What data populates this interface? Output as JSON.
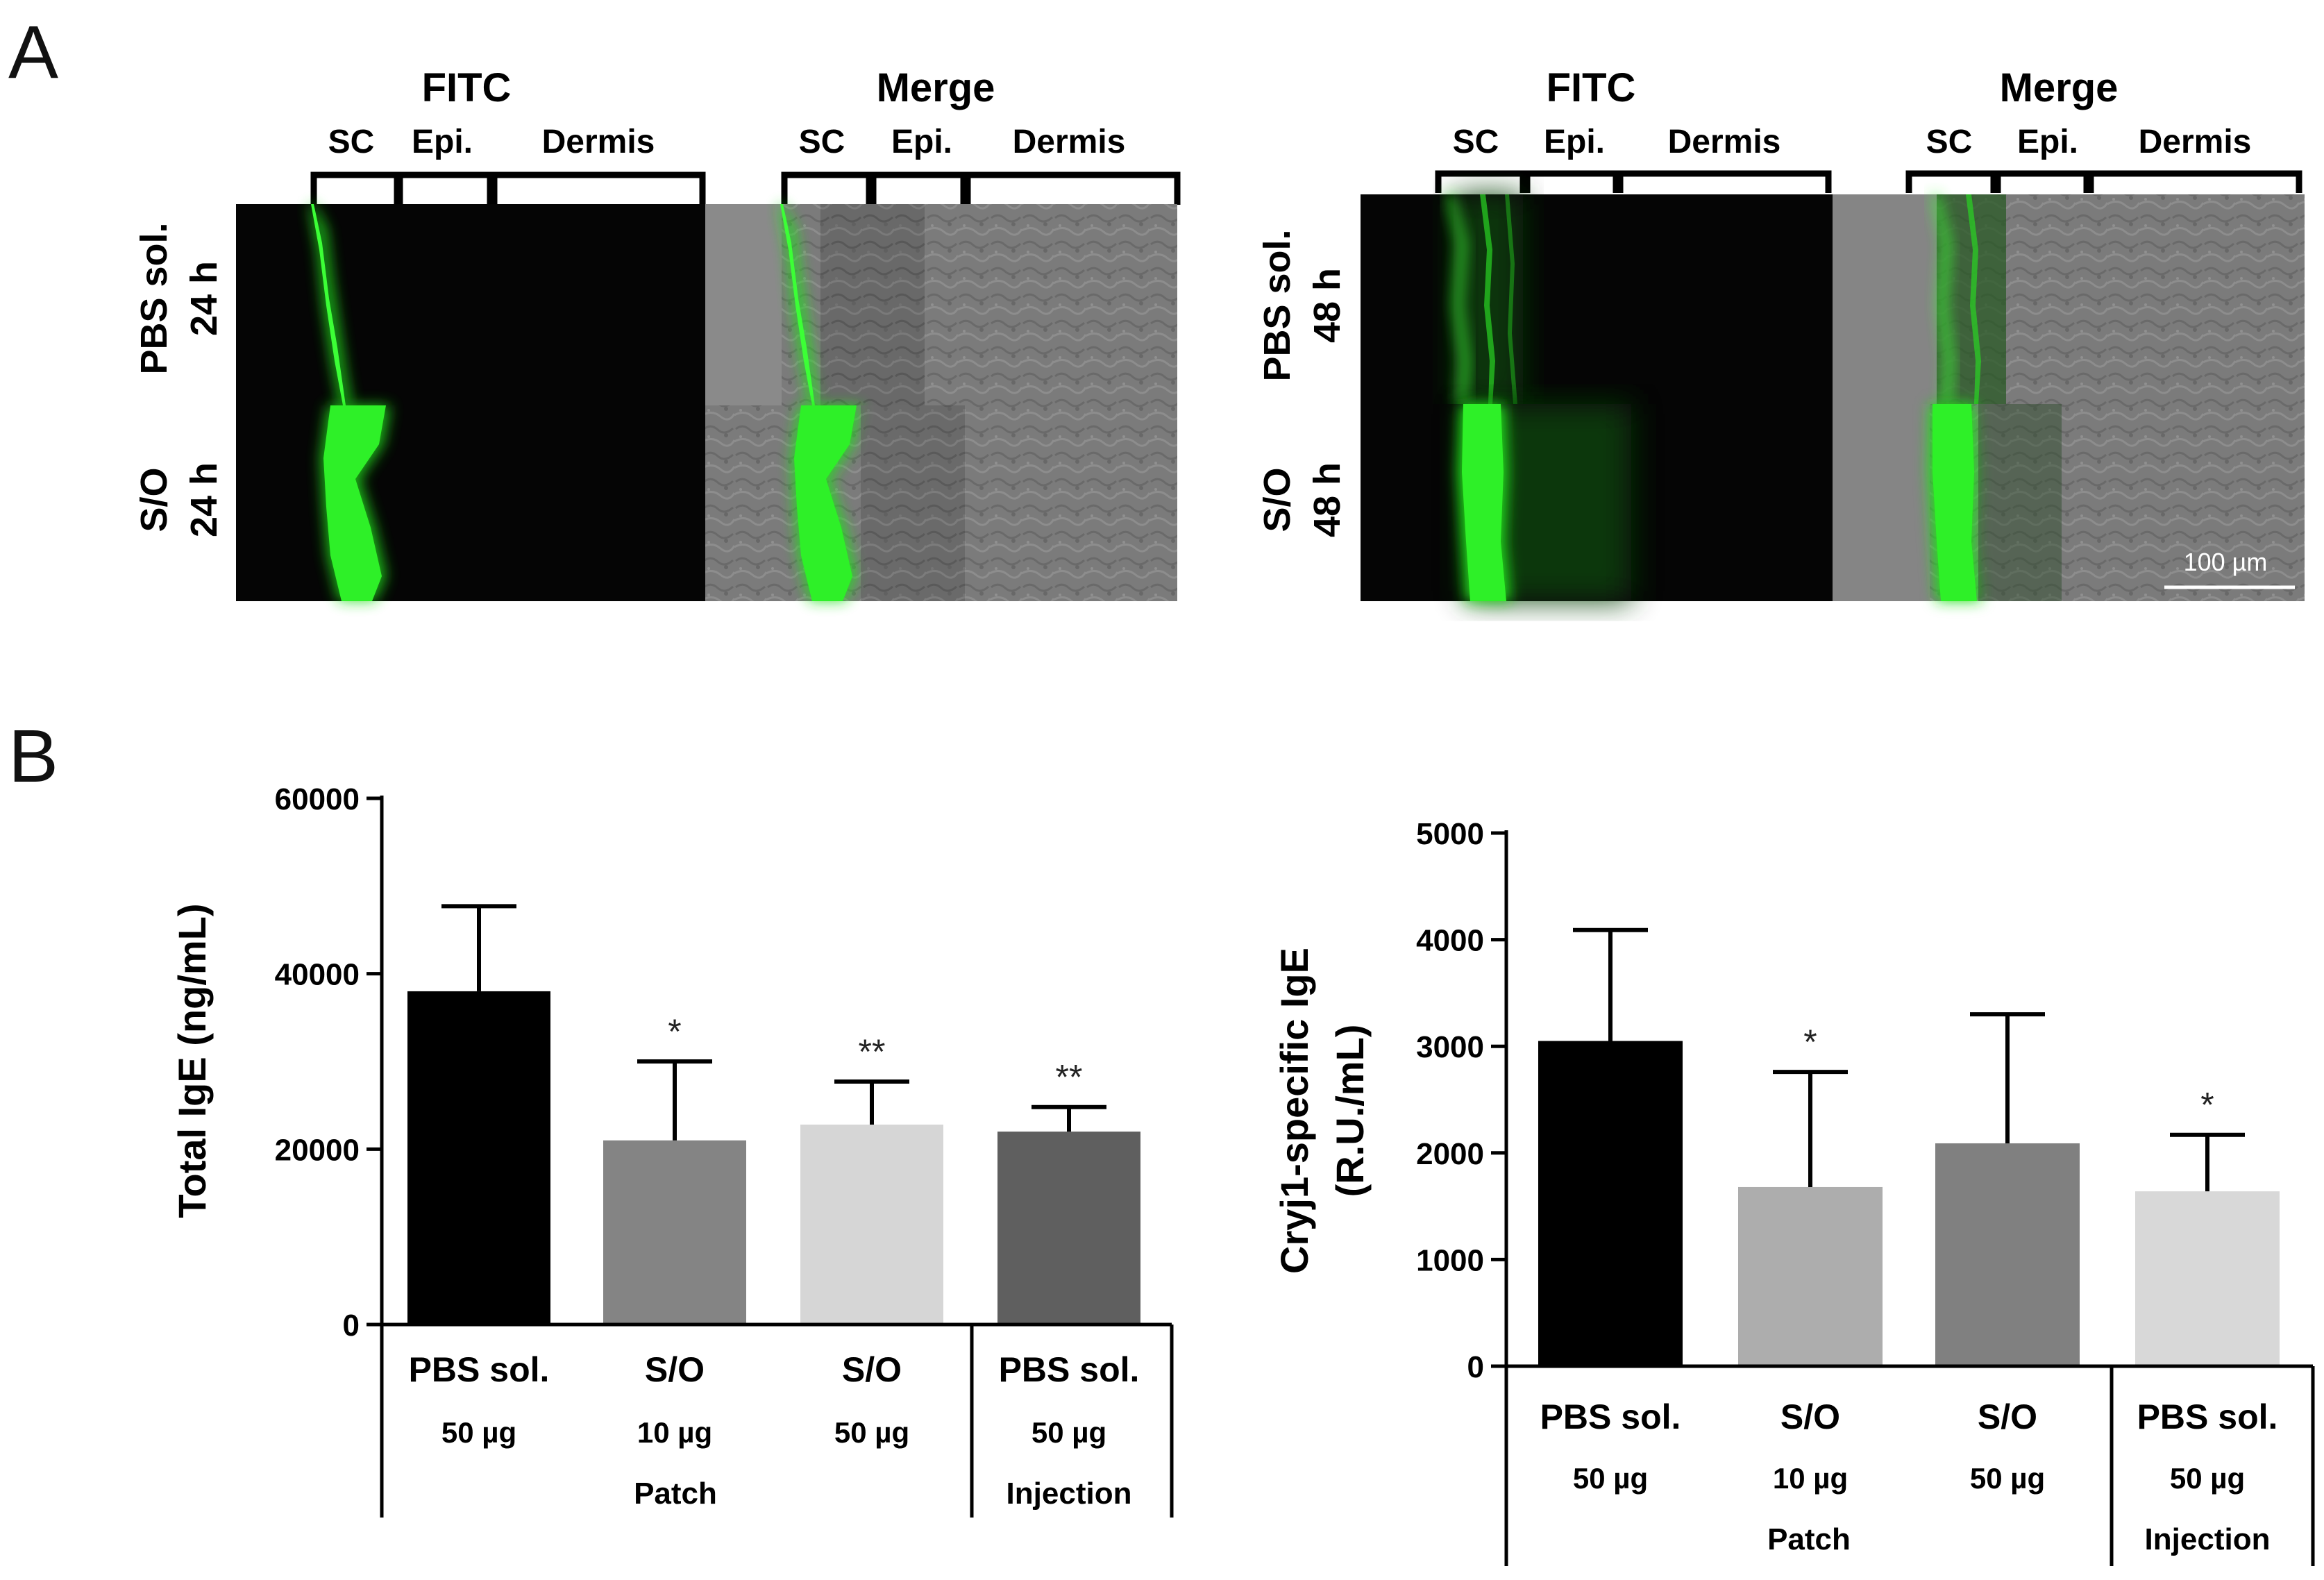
{
  "panel_a": {
    "label": "A",
    "left": {
      "header": {
        "fitc": "FITC",
        "merge": "Merge",
        "fitc_regions": [
          "SC",
          "Epi.",
          "Dermis"
        ],
        "merge_regions": [
          "SC",
          "Epi.",
          "Dermis"
        ]
      },
      "rows": [
        {
          "line1": "PBS sol.",
          "line2": "24 h"
        },
        {
          "line1": "S/O",
          "line2": "24 h"
        }
      ]
    },
    "right": {
      "header": {
        "fitc": "FITC",
        "merge": "Merge",
        "fitc_regions": [
          "SC",
          "Epi.",
          "Dermis"
        ],
        "merge_regions": [
          "SC",
          "Epi.",
          "Dermis"
        ]
      },
      "rows": [
        {
          "line1": "PBS sol.",
          "line2": "48 h"
        },
        {
          "line1": "S/O",
          "line2": "48 h"
        }
      ],
      "scale_bar": "100 µm"
    },
    "colors": {
      "fluorescence": "#22e01e",
      "background": "#050505",
      "brightfield": "#7a7a7a"
    }
  },
  "panel_b": {
    "label": "B"
  },
  "chart_data": [
    {
      "type": "bar",
      "title": "",
      "ylabel": "Total IgE (ng/mL)",
      "ylim": [
        0,
        60000
      ],
      "yticks": [
        "0",
        "20000",
        "40000",
        "60000"
      ],
      "grid": false,
      "categories": [
        {
          "name": "PBS sol.",
          "dose": "50 µg"
        },
        {
          "name": "S/O",
          "dose": "10 µg"
        },
        {
          "name": "S/O",
          "dose": "50 µg"
        },
        {
          "name": "PBS sol.",
          "dose": "50 µg"
        }
      ],
      "groups": [
        {
          "label": "Patch",
          "span": [
            0,
            2
          ]
        },
        {
          "label": "Injection",
          "span": [
            3,
            3
          ]
        }
      ],
      "values": [
        38000,
        21000,
        22800,
        22000
      ],
      "errors": [
        9700,
        9000,
        4900,
        2800
      ],
      "significance": [
        "",
        "*",
        "**",
        "**"
      ],
      "colors": [
        "#000000",
        "#848484",
        "#d6d6d6",
        "#5f5f5f"
      ]
    },
    {
      "type": "bar",
      "title": "",
      "ylabel": "Cryj1-specific IgE",
      "ylabel2": "(R.U./mL)",
      "ylim": [
        0,
        5000
      ],
      "yticks": [
        "0",
        "1000",
        "2000",
        "3000",
        "4000",
        "5000"
      ],
      "grid": false,
      "categories": [
        {
          "name": "PBS sol.",
          "dose": "50 µg"
        },
        {
          "name": "S/O",
          "dose": "10 µg"
        },
        {
          "name": "S/O",
          "dose": "50 µg"
        },
        {
          "name": "PBS sol.",
          "dose": "50 µg"
        }
      ],
      "groups": [
        {
          "label": "Patch",
          "span": [
            0,
            2
          ]
        },
        {
          "label": "Injection",
          "span": [
            3,
            3
          ]
        }
      ],
      "values": [
        3050,
        1680,
        2090,
        1640
      ],
      "errors": [
        1040,
        1080,
        1210,
        530
      ],
      "significance": [
        "",
        "*",
        "",
        "*"
      ],
      "colors": [
        "#000000",
        "#adadad",
        "#808080",
        "#d8d8d8"
      ]
    }
  ]
}
